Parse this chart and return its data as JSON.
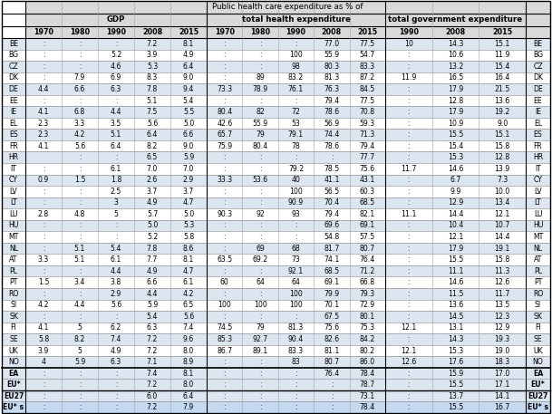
{
  "title": "Public health care expenditure as % of",
  "col_groups": [
    "GDP",
    "total health expenditure",
    "total government expenditure"
  ],
  "years_gdp": [
    "1970",
    "1980",
    "1990",
    "2008",
    "2015"
  ],
  "years_the": [
    "1970",
    "1980",
    "1990",
    "2008",
    "2015"
  ],
  "years_tge": [
    "1990",
    "2008",
    "2015"
  ],
  "rows": [
    {
      "code": "BE",
      "gdp": [
        ":",
        ":",
        ":",
        "7.2",
        "8.1"
      ],
      "the": [
        ":",
        ":",
        ":",
        "77.0",
        "77.5"
      ],
      "tge": [
        "10",
        "14.3",
        "15.1"
      ]
    },
    {
      "code": "BG",
      "gdp": [
        ":",
        ":",
        "5.2",
        "3.9",
        "4.9"
      ],
      "the": [
        ":",
        ":",
        "100",
        "55.9",
        "54.7"
      ],
      "tge": [
        ":",
        "10.6",
        "11.9"
      ]
    },
    {
      "code": "CZ",
      "gdp": [
        ":",
        ":",
        "4.6",
        "5.3",
        "6.4"
      ],
      "the": [
        ":",
        ":",
        "98",
        "80.3",
        "83.3"
      ],
      "tge": [
        ":",
        "13.2",
        "15.4"
      ]
    },
    {
      "code": "DK",
      "gdp": [
        ":",
        "7.9",
        "6.9",
        "8.3",
        "9.0"
      ],
      "the": [
        ":",
        "89",
        "83.2",
        "81.3",
        "87.2"
      ],
      "tge": [
        "11.9",
        "16.5",
        "16.4"
      ]
    },
    {
      "code": "DE",
      "gdp": [
        "4.4",
        "6.6",
        "6.3",
        "7.8",
        "9.4"
      ],
      "the": [
        "73.3",
        "78.9",
        "76.1",
        "76.3",
        "84.5"
      ],
      "tge": [
        ":",
        "17.9",
        "21.5"
      ]
    },
    {
      "code": "EE",
      "gdp": [
        ":",
        ":",
        ":",
        "5.1",
        "5.4"
      ],
      "the": [
        ":",
        ":",
        ":",
        "79.4",
        "77.5"
      ],
      "tge": [
        ":",
        "12.8",
        "13.6"
      ]
    },
    {
      "code": "IE",
      "gdp": [
        "4.1",
        "6.8",
        "4.4",
        "7.5",
        "5.5"
      ],
      "the": [
        "80.4",
        "82",
        "72",
        "78.6",
        "70.8"
      ],
      "tge": [
        ":",
        "17.9",
        "19.2"
      ]
    },
    {
      "code": "EL",
      "gdp": [
        "2.3",
        "3.3",
        "3.5",
        "5.6",
        "5.0"
      ],
      "the": [
        "42.6",
        "55.9",
        "53",
        "56.9",
        "59.3"
      ],
      "tge": [
        ":",
        "10.9",
        "9.0"
      ]
    },
    {
      "code": "ES",
      "gdp": [
        "2.3",
        "4.2",
        "5.1",
        "6.4",
        "6.6"
      ],
      "the": [
        "65.7",
        "79",
        "79.1",
        "74.4",
        "71.3"
      ],
      "tge": [
        ":",
        "15.5",
        "15.1"
      ]
    },
    {
      "code": "FR",
      "gdp": [
        "4.1",
        "5.6",
        "6.4",
        "8.2",
        "9.0"
      ],
      "the": [
        "75.9",
        "80.4",
        "78",
        "78.6",
        "79.4"
      ],
      "tge": [
        ":",
        "15.4",
        "15.8"
      ]
    },
    {
      "code": "HR",
      "gdp": [
        "",
        ":",
        ":",
        "6.5",
        "5.9"
      ],
      "the": [
        ":",
        ":",
        ":",
        ":",
        "77.7"
      ],
      "tge": [
        ":",
        "15.3",
        "12.8"
      ]
    },
    {
      "code": "IT",
      "gdp": [
        ":",
        ":",
        "6.1",
        "7.0",
        "7.0"
      ],
      "the": [
        ":",
        ":",
        "79.2",
        "78.5",
        "75.6"
      ],
      "tge": [
        "11.7",
        "14.6",
        "13.9"
      ]
    },
    {
      "code": "CY",
      "gdp": [
        "0.9",
        "1.5",
        "1.8",
        "2.6",
        "2.9"
      ],
      "the": [
        "33.3",
        "53.6",
        "40",
        "41.1",
        "43.1"
      ],
      "tge": [
        ":",
        "6.7",
        "7.3"
      ]
    },
    {
      "code": "LV",
      "gdp": [
        ":",
        ":",
        "2.5",
        "3.7",
        "3.7"
      ],
      "the": [
        ":",
        ":",
        "100",
        "56.5",
        "60.3"
      ],
      "tge": [
        ":",
        "9.9",
        "10.0"
      ]
    },
    {
      "code": "LT",
      "gdp": [
        ":",
        ":",
        "3",
        "4.9",
        "4.7"
      ],
      "the": [
        ":",
        ":",
        "90.9",
        "70.4",
        "68.5"
      ],
      "tge": [
        ":",
        "12.9",
        "13.4"
      ]
    },
    {
      "code": "LU",
      "gdp": [
        "2.8",
        "4.8",
        "5",
        "5.7",
        "5.0"
      ],
      "the": [
        "90.3",
        "92",
        "93",
        "79.4",
        "82.1"
      ],
      "tge": [
        "11.1",
        "14.4",
        "12.1"
      ]
    },
    {
      "code": "HU",
      "gdp": [
        ":",
        ":",
        ":",
        "5.0",
        "5.3"
      ],
      "the": [
        ":",
        ":",
        ":",
        "69.6",
        "69.1"
      ],
      "tge": [
        ":",
        "10.4",
        "10.7"
      ]
    },
    {
      "code": "MT",
      "gdp": [
        ":",
        ":",
        ":",
        "5.2",
        "5.8"
      ],
      "the": [
        ":",
        ":",
        ":",
        "54.8",
        "57.5"
      ],
      "tge": [
        ":",
        "12.1",
        "14.4"
      ]
    },
    {
      "code": "NL",
      "gdp": [
        ":",
        "5.1",
        "5.4",
        "7.8",
        "8.6"
      ],
      "the": [
        ":",
        "69",
        "68",
        "81.7",
        "80.7"
      ],
      "tge": [
        ":",
        "17.9",
        "19.1"
      ]
    },
    {
      "code": "AT",
      "gdp": [
        "3.3",
        "5.1",
        "6.1",
        "7.7",
        "8.1"
      ],
      "the": [
        "63.5",
        "69.2",
        "73",
        "74.1",
        "76.4"
      ],
      "tge": [
        ":",
        "15.5",
        "15.8"
      ]
    },
    {
      "code": "PL",
      "gdp": [
        ":",
        ":",
        "4.4",
        "4.9",
        "4.7"
      ],
      "the": [
        ":",
        ":",
        "92.1",
        "68.5",
        "71.2"
      ],
      "tge": [
        ":",
        "11.1",
        "11.3"
      ]
    },
    {
      "code": "PT",
      "gdp": [
        "1.5",
        "3.4",
        "3.8",
        "6.6",
        "6.1"
      ],
      "the": [
        "60",
        "64",
        "64",
        "69.1",
        "66.8"
      ],
      "tge": [
        ":",
        "14.6",
        "12.6"
      ]
    },
    {
      "code": "RO",
      "gdp": [
        ":",
        ":",
        "2.9",
        "4.4",
        "4.2"
      ],
      "the": [
        ":",
        ":",
        "100",
        "79.9",
        "79.3"
      ],
      "tge": [
        ":",
        "11.5",
        "11.7"
      ]
    },
    {
      "code": "SI",
      "gdp": [
        "4.2",
        "4.4",
        "5.6",
        "5.9",
        "6.5"
      ],
      "the": [
        "100",
        "100",
        "100",
        "70.1",
        "72.9"
      ],
      "tge": [
        ":",
        "13.6",
        "13.5"
      ]
    },
    {
      "code": "SK",
      "gdp": [
        ":",
        ":",
        ":",
        "5.4",
        "5.6"
      ],
      "the": [
        ":",
        ":",
        ":",
        "67.5",
        "80.1"
      ],
      "tge": [
        ":",
        "14.5",
        "12.3"
      ]
    },
    {
      "code": "FI",
      "gdp": [
        "4.1",
        "5",
        "6.2",
        "6.3",
        "7.4"
      ],
      "the": [
        "74.5",
        "79",
        "81.3",
        "75.6",
        "75.3"
      ],
      "tge": [
        "12.1",
        "13.1",
        "12.9"
      ]
    },
    {
      "code": "SE",
      "gdp": [
        "5.8",
        "8.2",
        "7.4",
        "7.2",
        "9.6"
      ],
      "the": [
        "85.3",
        "92.7",
        "90.4",
        "82.6",
        "84.2"
      ],
      "tge": [
        ":",
        "14.3",
        "19.3"
      ]
    },
    {
      "code": "UK",
      "gdp": [
        "3.9",
        "5",
        "4.9",
        "7.2",
        "8.0"
      ],
      "the": [
        "86.7",
        "89.1",
        "83.3",
        "81.1",
        "80.2"
      ],
      "tge": [
        "12.1",
        "15.3",
        "19.0"
      ]
    },
    {
      "code": "NO",
      "gdp": [
        "4",
        "5.9",
        "6.3",
        "7.1",
        "8.9"
      ],
      "the": [
        ":",
        ":",
        "83",
        "80.7",
        "86.0"
      ],
      "tge": [
        "12.6",
        "17.6",
        "18.3"
      ]
    },
    {
      "code": "EA",
      "gdp": [
        ":",
        ":",
        ":",
        "7.4",
        "8.1"
      ],
      "the": [
        ":",
        ":",
        ":",
        "76.4",
        "78.4"
      ],
      "tge": [
        ":",
        "15.9",
        "17.0"
      ],
      "summary": true
    },
    {
      "code": "EU*",
      "gdp": [
        ":",
        ":",
        ":",
        "7.2",
        "8.0"
      ],
      "the": [
        ":",
        ":",
        ":",
        ":",
        "78.7"
      ],
      "tge": [
        ":",
        "15.5",
        "17.1"
      ],
      "summary": true
    },
    {
      "code": "EU27",
      "gdp": [
        ":",
        ":",
        ":",
        "6.0",
        "6.4"
      ],
      "the": [
        ":",
        ":",
        ":",
        ":",
        "73.1"
      ],
      "tge": [
        ":",
        "13.7",
        "14.1"
      ],
      "summary2": true
    },
    {
      "code": "EU* s",
      "gdp": [
        ":",
        ":",
        ":",
        "7.2",
        "7.9"
      ],
      "the": [
        ":",
        ":",
        ":",
        ":",
        "78.4"
      ],
      "tge": [
        ":",
        "15.5",
        "16.7"
      ],
      "summary2": true
    }
  ],
  "header_bg": "#d9d9d9",
  "row_bg_even": "#dce6f1",
  "row_bg_odd": "#ffffff",
  "summary_bg": "#dce6f1",
  "summary2_bg_even": "#c5d9f1",
  "summary2_bg_odd": "#dce6f1",
  "sep_line_color": "#000000",
  "grid_color": "#a0a0a0"
}
